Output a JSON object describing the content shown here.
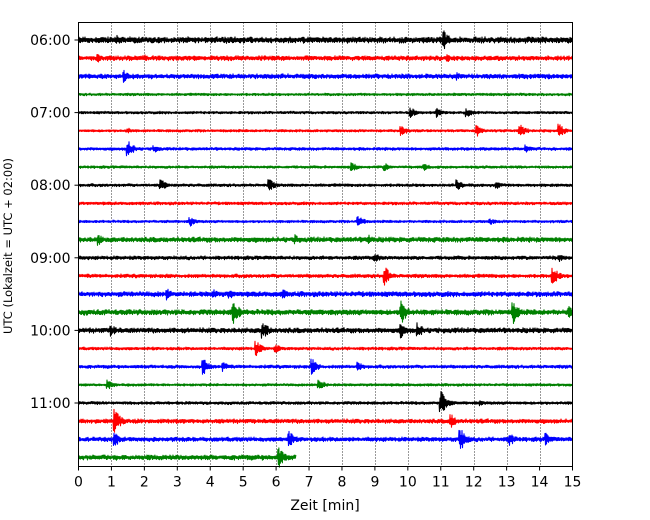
{
  "chart_data": {
    "type": "line",
    "subtype": "helicorder",
    "title": "",
    "xlabel": "Zeit  [min]",
    "ylabel": "UTC (Lokalzeit = UTC + 02:00)",
    "xlim": [
      0,
      15
    ],
    "x_ticks": [
      "0",
      "1",
      "2",
      "3",
      "4",
      "5",
      "6",
      "7",
      "8",
      "9",
      "10",
      "11",
      "12",
      "13",
      "14",
      "15"
    ],
    "y_ticks": [
      {
        "label": "06:00",
        "trace": 0
      },
      {
        "label": "07:00",
        "trace": 4
      },
      {
        "label": "08:00",
        "trace": 8
      },
      {
        "label": "09:00",
        "trace": 12
      },
      {
        "label": "10:00",
        "trace": 16
      },
      {
        "label": "11:00",
        "trace": 20
      }
    ],
    "grid": "x-dotted",
    "legend": "none",
    "color_cycle": [
      "#000000",
      "#ff0000",
      "#0000ff",
      "#008000"
    ],
    "minutes_per_trace": 15,
    "traces": [
      {
        "start": "06:00",
        "color": "#000000",
        "end_min": 15,
        "amplitude": 3.4,
        "events": [
          [
            1.2,
            5
          ],
          [
            11.1,
            10
          ]
        ]
      },
      {
        "start": "06:15",
        "color": "#ff0000",
        "end_min": 15,
        "amplitude": 2.6,
        "events": [
          [
            0.6,
            4
          ],
          [
            2.0,
            4
          ],
          [
            11.2,
            4
          ]
        ]
      },
      {
        "start": "06:30",
        "color": "#0000ff",
        "end_min": 15,
        "amplitude": 2.6,
        "events": [
          [
            1.4,
            6
          ],
          [
            11.5,
            4
          ]
        ]
      },
      {
        "start": "06:45",
        "color": "#008000",
        "end_min": 15,
        "amplitude": 1.4,
        "events": []
      },
      {
        "start": "07:00",
        "color": "#000000",
        "end_min": 15,
        "amplitude": 1.4,
        "events": [
          [
            10.1,
            5
          ],
          [
            10.9,
            5
          ],
          [
            11.8,
            5
          ]
        ]
      },
      {
        "start": "07:15",
        "color": "#ff0000",
        "end_min": 15,
        "amplitude": 1.4,
        "events": [
          [
            1.5,
            3
          ],
          [
            9.8,
            6
          ],
          [
            12.1,
            6
          ],
          [
            13.4,
            8
          ],
          [
            14.6,
            7
          ]
        ]
      },
      {
        "start": "07:30",
        "color": "#0000ff",
        "end_min": 15,
        "amplitude": 1.6,
        "events": [
          [
            1.5,
            9
          ],
          [
            2.3,
            4
          ],
          [
            13.6,
            4
          ]
        ]
      },
      {
        "start": "07:45",
        "color": "#008000",
        "end_min": 15,
        "amplitude": 1.4,
        "events": [
          [
            8.3,
            5
          ],
          [
            9.3,
            4
          ],
          [
            10.5,
            4
          ]
        ]
      },
      {
        "start": "08:00",
        "color": "#000000",
        "end_min": 15,
        "amplitude": 1.6,
        "events": [
          [
            2.5,
            6
          ],
          [
            5.8,
            6
          ],
          [
            11.5,
            6
          ],
          [
            12.7,
            4
          ]
        ]
      },
      {
        "start": "08:15",
        "color": "#ff0000",
        "end_min": 15,
        "amplitude": 1.6,
        "events": []
      },
      {
        "start": "08:30",
        "color": "#0000ff",
        "end_min": 15,
        "amplitude": 1.4,
        "events": [
          [
            3.4,
            5
          ],
          [
            8.5,
            6
          ],
          [
            12.5,
            4
          ]
        ]
      },
      {
        "start": "08:45",
        "color": "#008000",
        "end_min": 15,
        "amplitude": 2.8,
        "events": [
          [
            0.6,
            6
          ],
          [
            6.6,
            5
          ],
          [
            8.8,
            5
          ]
        ]
      },
      {
        "start": "09:00",
        "color": "#000000",
        "end_min": 15,
        "amplitude": 2.0,
        "events": [
          [
            9.0,
            5
          ],
          [
            14.6,
            4
          ]
        ]
      },
      {
        "start": "09:15",
        "color": "#ff0000",
        "end_min": 15,
        "amplitude": 2.0,
        "events": [
          [
            9.3,
            10
          ],
          [
            14.4,
            10
          ]
        ]
      },
      {
        "start": "09:30",
        "color": "#0000ff",
        "end_min": 15,
        "amplitude": 2.8,
        "events": [
          [
            2.7,
            6
          ],
          [
            4.1,
            5
          ],
          [
            4.6,
            5
          ],
          [
            6.2,
            5
          ]
        ]
      },
      {
        "start": "09:45",
        "color": "#008000",
        "end_min": 15,
        "amplitude": 3.0,
        "events": [
          [
            4.7,
            14
          ],
          [
            9.8,
            14
          ],
          [
            13.2,
            12
          ],
          [
            14.9,
            6
          ]
        ]
      },
      {
        "start": "10:00",
        "color": "#000000",
        "end_min": 15,
        "amplitude": 2.8,
        "events": [
          [
            1.0,
            6
          ],
          [
            5.6,
            10
          ],
          [
            9.8,
            8
          ],
          [
            10.3,
            8
          ]
        ]
      },
      {
        "start": "10:15",
        "color": "#ff0000",
        "end_min": 15,
        "amplitude": 1.6,
        "events": [
          [
            5.4,
            8
          ],
          [
            6.0,
            4
          ]
        ]
      },
      {
        "start": "10:30",
        "color": "#0000ff",
        "end_min": 15,
        "amplitude": 1.8,
        "events": [
          [
            3.8,
            8
          ],
          [
            4.4,
            5
          ],
          [
            7.1,
            8
          ],
          [
            8.5,
            5
          ]
        ]
      },
      {
        "start": "10:45",
        "color": "#008000",
        "end_min": 15,
        "amplitude": 1.4,
        "events": [
          [
            0.9,
            5
          ],
          [
            7.3,
            6
          ]
        ]
      },
      {
        "start": "11:00",
        "color": "#000000",
        "end_min": 15,
        "amplitude": 1.6,
        "events": [
          [
            11.0,
            14
          ],
          [
            12.2,
            3
          ]
        ]
      },
      {
        "start": "11:15",
        "color": "#ff0000",
        "end_min": 15,
        "amplitude": 2.4,
        "events": [
          [
            1.1,
            13
          ],
          [
            11.3,
            8
          ]
        ]
      },
      {
        "start": "11:30",
        "color": "#0000ff",
        "end_min": 15,
        "amplitude": 2.4,
        "events": [
          [
            1.1,
            8
          ],
          [
            6.4,
            9
          ],
          [
            11.6,
            12
          ],
          [
            13.1,
            7
          ],
          [
            14.2,
            6
          ]
        ]
      },
      {
        "start": "11:45",
        "color": "#008000",
        "end_min": 6.6,
        "amplitude": 2.8,
        "events": [
          [
            6.1,
            10
          ]
        ]
      }
    ]
  }
}
